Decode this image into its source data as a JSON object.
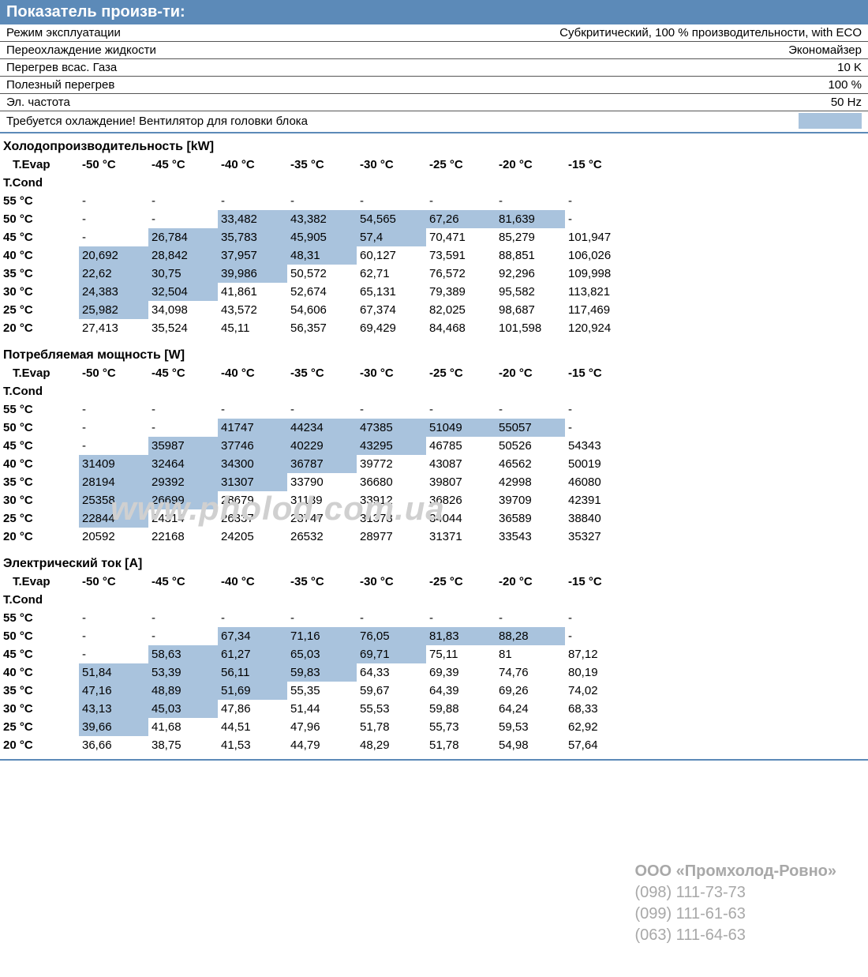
{
  "header": "Показатель произв-ти:",
  "params": [
    {
      "label": "Режим эксплуатации",
      "value": "Субкритический, 100 % производительности, with ECO"
    },
    {
      "label": "Переохлаждение жидкости",
      "value": "Экономайзер"
    },
    {
      "label": "Перегрев всас. Газа",
      "value": "10 K"
    },
    {
      "label": "Полезный перегрев",
      "value": "100 %"
    },
    {
      "label": "Эл. частота",
      "value": "50 Hz"
    }
  ],
  "note": "Требуется охлаждение! Вентилятор для головки блока",
  "evap_label": "T.Evap",
  "cond_label": "T.Cond",
  "evap_cols": [
    "-50 °C",
    "-45 °C",
    "-40 °C",
    "-35 °C",
    "-30 °C",
    "-25 °C",
    "-20 °C",
    "-15 °C"
  ],
  "cond_rows": [
    "55 °C",
    "50 °C",
    "45 °C",
    "40 °C",
    "35 °C",
    "30 °C",
    "25 °C",
    "20 °C"
  ],
  "tables": [
    {
      "title": "Холодопроизводительность [kW]",
      "rows": [
        [
          "-",
          "-",
          "-",
          "-",
          "-",
          "-",
          "-",
          "-"
        ],
        [
          "-",
          "-",
          "33,482",
          "43,382",
          "54,565",
          "67,26",
          "81,639",
          "-"
        ],
        [
          "-",
          "26,784",
          "35,783",
          "45,905",
          "57,4",
          "70,471",
          "85,279",
          "101,947"
        ],
        [
          "20,692",
          "28,842",
          "37,957",
          "48,31",
          "60,127",
          "73,591",
          "88,851",
          "106,026"
        ],
        [
          "22,62",
          "30,75",
          "39,986",
          "50,572",
          "62,71",
          "76,572",
          "92,296",
          "109,998"
        ],
        [
          "24,383",
          "32,504",
          "41,861",
          "52,674",
          "65,131",
          "79,389",
          "95,582",
          "113,821"
        ],
        [
          "25,982",
          "34,098",
          "43,572",
          "54,606",
          "67,374",
          "82,025",
          "98,687",
          "117,469"
        ],
        [
          "27,413",
          "35,524",
          "45,11",
          "56,357",
          "69,429",
          "84,468",
          "101,598",
          "120,924"
        ]
      ],
      "hl": [
        [],
        [
          2,
          3,
          4,
          5,
          6
        ],
        [
          1,
          2,
          3,
          4
        ],
        [
          0,
          1,
          2,
          3
        ],
        [
          0,
          1,
          2
        ],
        [
          0,
          1
        ],
        [
          0
        ],
        []
      ]
    },
    {
      "title": "Потребляемая мощность [W]",
      "rows": [
        [
          "-",
          "-",
          "-",
          "-",
          "-",
          "-",
          "-",
          "-"
        ],
        [
          "-",
          "-",
          "41747",
          "44234",
          "47385",
          "51049",
          "55057",
          "-"
        ],
        [
          "-",
          "35987",
          "37746",
          "40229",
          "43295",
          "46785",
          "50526",
          "54343"
        ],
        [
          "31409",
          "32464",
          "34300",
          "36787",
          "39772",
          "43087",
          "46562",
          "50019"
        ],
        [
          "28194",
          "29392",
          "31307",
          "33790",
          "36680",
          "39807",
          "42998",
          "46080"
        ],
        [
          "25358",
          "26699",
          "28679",
          "31139",
          "33912",
          "36826",
          "39709",
          "42391"
        ],
        [
          "22844",
          "24314",
          "26337",
          "28747",
          "31373",
          "34044",
          "36589",
          "38840"
        ],
        [
          "20592",
          "22168",
          "24205",
          "26532",
          "28977",
          "31371",
          "33543",
          "35327"
        ]
      ],
      "hl": [
        [],
        [
          2,
          3,
          4,
          5,
          6
        ],
        [
          1,
          2,
          3,
          4
        ],
        [
          0,
          1,
          2,
          3
        ],
        [
          0,
          1,
          2
        ],
        [
          0,
          1
        ],
        [
          0
        ],
        []
      ]
    },
    {
      "title": "Электрический ток [A]",
      "rows": [
        [
          "-",
          "-",
          "-",
          "-",
          "-",
          "-",
          "-",
          "-"
        ],
        [
          "-",
          "-",
          "67,34",
          "71,16",
          "76,05",
          "81,83",
          "88,28",
          "-"
        ],
        [
          "-",
          "58,63",
          "61,27",
          "65,03",
          "69,71",
          "75,11",
          "81",
          "87,12"
        ],
        [
          "51,84",
          "53,39",
          "56,11",
          "59,83",
          "64,33",
          "69,39",
          "74,76",
          "80,19"
        ],
        [
          "47,16",
          "48,89",
          "51,69",
          "55,35",
          "59,67",
          "64,39",
          "69,26",
          "74,02"
        ],
        [
          "43,13",
          "45,03",
          "47,86",
          "51,44",
          "55,53",
          "59,88",
          "64,24",
          "68,33"
        ],
        [
          "39,66",
          "41,68",
          "44,51",
          "47,96",
          "51,78",
          "55,73",
          "59,53",
          "62,92"
        ],
        [
          "36,66",
          "38,75",
          "41,53",
          "44,79",
          "48,29",
          "51,78",
          "54,98",
          "57,64"
        ]
      ],
      "hl": [
        [],
        [
          2,
          3,
          4,
          5,
          6
        ],
        [
          1,
          2,
          3,
          4
        ],
        [
          0,
          1,
          2,
          3
        ],
        [
          0,
          1,
          2
        ],
        [
          0,
          1
        ],
        [
          0
        ],
        []
      ]
    }
  ],
  "watermark": "www.pholod.com.ua",
  "footer": {
    "company": "ООО «Промхолод-Ровно»",
    "phones": [
      "(098) 111-73-73",
      "(099) 111-61-63",
      "(063) 111-64-63"
    ]
  },
  "colors": {
    "header_bg": "#5c8ab8",
    "highlight_bg": "#a9c3dd",
    "border": "#555555",
    "footer_text": "#a8a8a8"
  }
}
